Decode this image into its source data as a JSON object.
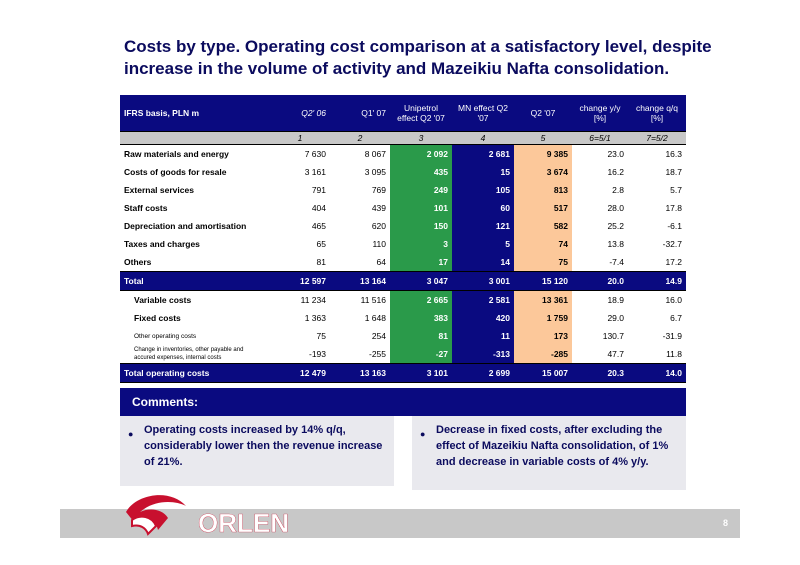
{
  "title": "Costs by type. Operating cost comparison at a satisfactory level, despite increase in the volume of activity and Mazeikiu Nafta consolidation.",
  "table": {
    "headers": [
      "IFRS basis, PLN m",
      "Q2' 06",
      "Q1' 07",
      "Unipetrol effect Q2 '07",
      "MN effect Q2 '07",
      "Q2 '07",
      "change y/y [%]",
      "change q/q [%]"
    ],
    "col_numbers": [
      "1",
      "2",
      "3",
      "4",
      "5",
      "6=5/1",
      "7=5/2"
    ],
    "rows": [
      {
        "label": "Raw materials and energy",
        "v": [
          "7 630",
          "8 067",
          "2 092",
          "2 681",
          "9 385",
          "23.0",
          "16.3"
        ]
      },
      {
        "label": "Costs of goods for resale",
        "v": [
          "3 161",
          "3 095",
          "435",
          "15",
          "3 674",
          "16.2",
          "18.7"
        ]
      },
      {
        "label": "External services",
        "v": [
          "791",
          "769",
          "249",
          "105",
          "813",
          "2.8",
          "5.7"
        ]
      },
      {
        "label": "Staff costs",
        "v": [
          "404",
          "439",
          "101",
          "60",
          "517",
          "28.0",
          "17.8"
        ]
      },
      {
        "label": "Depreciation and amortisation",
        "v": [
          "465",
          "620",
          "150",
          "121",
          "582",
          "25.2",
          "-6.1"
        ]
      },
      {
        "label": "Taxes and charges",
        "v": [
          "65",
          "110",
          "3",
          "5",
          "74",
          "13.8",
          "-32.7"
        ]
      },
      {
        "label": "Others",
        "v": [
          "81",
          "64",
          "17",
          "14",
          "75",
          "-7.4",
          "17.2"
        ]
      }
    ],
    "total": {
      "label": "Total",
      "v": [
        "12 597",
        "13 164",
        "3 047",
        "3 001",
        "15 120",
        "20.0",
        "14.9"
      ]
    },
    "sub_rows": [
      {
        "label": "Variable costs",
        "v": [
          "11 234",
          "11 516",
          "2 665",
          "2 581",
          "13 361",
          "18.9",
          "16.0"
        ]
      },
      {
        "label": "Fixed costs",
        "v": [
          "1 363",
          "1 648",
          "383",
          "420",
          "1 759",
          "29.0",
          "6.7"
        ]
      }
    ],
    "small_rows": [
      {
        "label": "Other operating costs",
        "v": [
          "75",
          "254",
          "81",
          "11",
          "173",
          "130.7",
          "-31.9"
        ]
      },
      {
        "label": "Change in inventories, other payable and accured expenses, internal costs",
        "v": [
          "-193",
          "-255",
          "-27",
          "-313",
          "-285",
          "47.7",
          "11.8"
        ]
      }
    ],
    "grand_total": {
      "label": "Total operating costs",
      "v": [
        "12 479",
        "13 163",
        "3 101",
        "2 699",
        "15 007",
        "20.3",
        "14.0"
      ]
    }
  },
  "comments": {
    "header": "Comments:",
    "left": "Operating costs increased by 14% q/q, considerably lower then the revenue increase of 21%.",
    "right": "Decrease in fixed costs, after excluding the effect of Mazeikiu Nafta consolidation, of 1% and decrease in variable costs of 4% y/y."
  },
  "logo_text": "ORLEN",
  "page_number": "8",
  "colors": {
    "navy": "#0a0a80",
    "green": "#2a9a4a",
    "orange": "#fcc89a",
    "logo_red": "#c8102e"
  }
}
